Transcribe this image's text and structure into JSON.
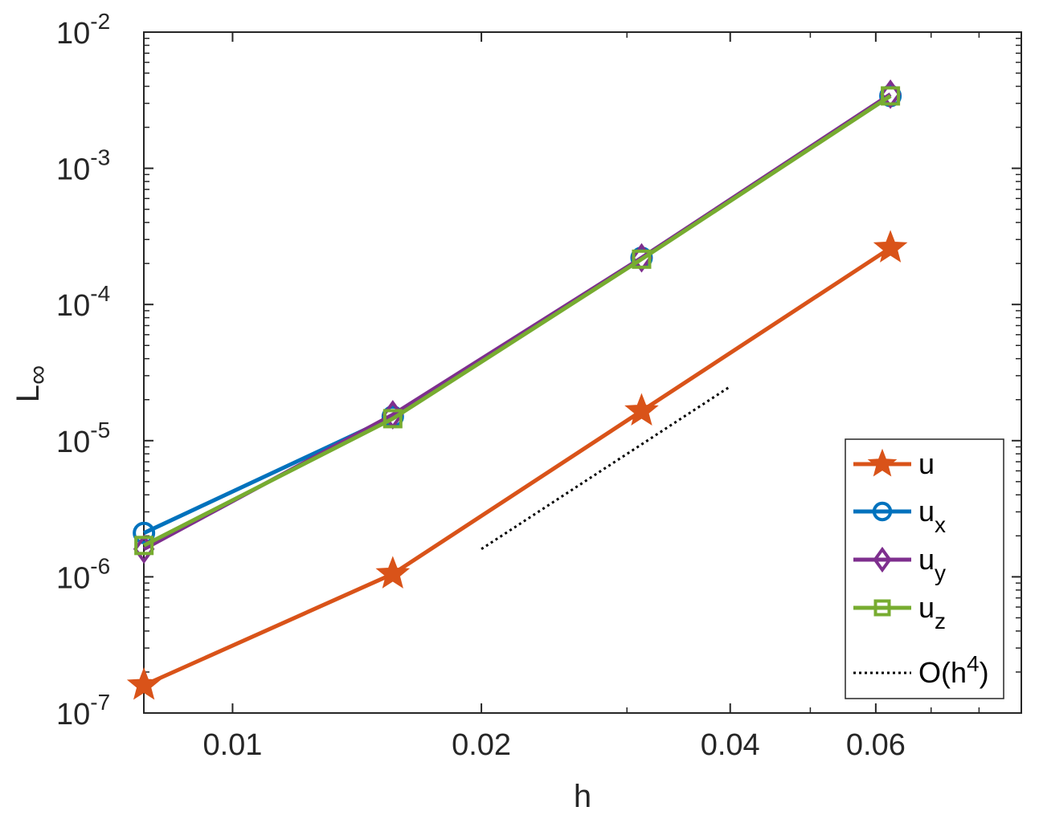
{
  "chart_data": {
    "type": "line",
    "xscale": "log",
    "yscale": "log",
    "xlabel": "h",
    "ylabel_base": "L",
    "ylabel_sub": "∞",
    "xlim": [
      0.00781,
      0.09
    ],
    "ylim": [
      1e-07,
      0.01
    ],
    "xticks": [
      {
        "value": 0.01,
        "label": "0.01"
      },
      {
        "value": 0.02,
        "label": "0.02"
      },
      {
        "value": 0.04,
        "label": "0.04"
      },
      {
        "value": 0.06,
        "label": "0.06"
      }
    ],
    "xminor": [
      0.03,
      0.05,
      0.07,
      0.08,
      0.09
    ],
    "yticks": [
      {
        "value": 1e-07,
        "base": "10",
        "exp": "-7"
      },
      {
        "value": 1e-06,
        "base": "10",
        "exp": "-6"
      },
      {
        "value": 1e-05,
        "base": "10",
        "exp": "-5"
      },
      {
        "value": 0.0001,
        "base": "10",
        "exp": "-4"
      },
      {
        "value": 0.001,
        "base": "10",
        "exp": "-3"
      },
      {
        "value": 0.01,
        "base": "10",
        "exp": "-2"
      }
    ],
    "grid": false,
    "legend_position": "bottom-right",
    "series": [
      {
        "name": "u",
        "name_sub": "",
        "marker": "star",
        "color": "#D95319",
        "x": [
          0.0078125,
          0.015625,
          0.03125,
          0.0625
        ],
        "y": [
          1.6e-07,
          1.05e-06,
          1.65e-05,
          0.00026
        ]
      },
      {
        "name": "u",
        "name_sub": "x",
        "marker": "circle",
        "color": "#0072BD",
        "x": [
          0.0078125,
          0.015625,
          0.03125,
          0.0625
        ],
        "y": [
          2.1e-06,
          1.5e-05,
          0.00022,
          0.0034
        ]
      },
      {
        "name": "u",
        "name_sub": "y",
        "marker": "diamond",
        "color": "#7E2F8E",
        "x": [
          0.0078125,
          0.015625,
          0.03125,
          0.0625
        ],
        "y": [
          1.6e-06,
          1.55e-05,
          0.00022,
          0.0035
        ]
      },
      {
        "name": "u",
        "name_sub": "z",
        "marker": "square",
        "color": "#77AC30",
        "x": [
          0.0078125,
          0.015625,
          0.03125,
          0.0625
        ],
        "y": [
          1.7e-06,
          1.45e-05,
          0.000215,
          0.0034
        ]
      }
    ],
    "reference": {
      "name": "O(h",
      "name_sup": "4",
      "name_end": ")",
      "style": "dotted",
      "color": "#000000",
      "x": [
        0.02,
        0.04
      ],
      "y": [
        1.6e-06,
        2.5e-05
      ]
    }
  }
}
